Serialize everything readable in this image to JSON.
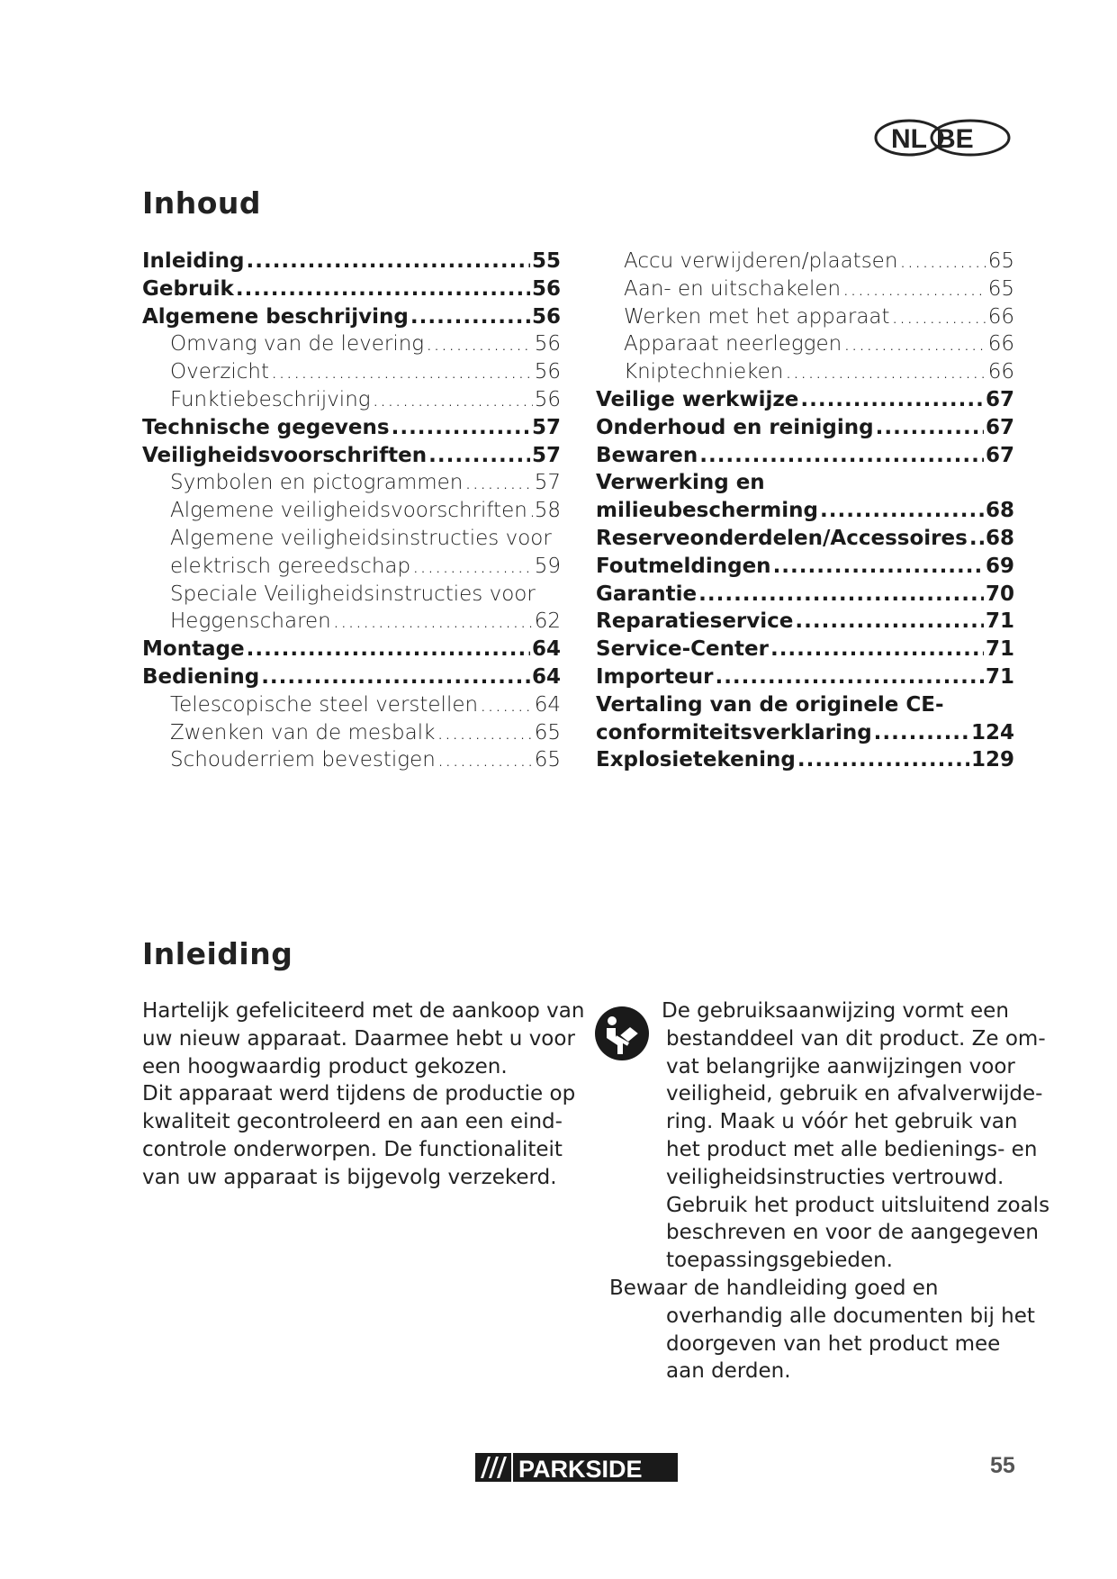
{
  "header": {
    "languages": [
      "NL",
      "BE"
    ]
  },
  "toc": {
    "title": "Inhoud",
    "left": [
      {
        "text": "Inleiding",
        "page": "55",
        "style": "b"
      },
      {
        "text": "Gebruik",
        "page": "56",
        "style": "b"
      },
      {
        "text": "Algemene beschrijving",
        "page": "56",
        "style": "b"
      },
      {
        "text": "Omvang van de levering",
        "page": "56",
        "style": "i"
      },
      {
        "text": "Overzicht",
        "page": "56",
        "style": "i"
      },
      {
        "text": "Funktiebeschrijving",
        "page": "56",
        "style": "i"
      },
      {
        "text": "Technische gegevens",
        "page": "57",
        "style": "b"
      },
      {
        "text": "Veiligheidsvoorschriften",
        "page": "57",
        "style": "b"
      },
      {
        "text": "Symbolen en pictogrammen",
        "page": "57",
        "style": "i"
      },
      {
        "text": "Algemene veiligheidsvoorschriften",
        "page": "58",
        "style": "i"
      },
      {
        "text": "Algemene veiligheidsinstructies voor",
        "page": null,
        "style": "i"
      },
      {
        "text": "elektrisch gereedschap",
        "page": "59",
        "style": "i"
      },
      {
        "text": "Speciale Veiligheidsinstructies voor",
        "page": null,
        "style": "i"
      },
      {
        "text": "Heggenscharen",
        "page": "62",
        "style": "i"
      },
      {
        "text": "Montage",
        "page": "64",
        "style": "b"
      },
      {
        "text": "Bediening",
        "page": "64",
        "style": "b"
      },
      {
        "text": "Telescopische steel verstellen",
        "page": "64",
        "style": "i"
      },
      {
        "text": "Zwenken van de mesbalk",
        "page": "65",
        "style": "i"
      },
      {
        "text": "Schouderriem bevestigen",
        "page": "65",
        "style": "i"
      }
    ],
    "right": [
      {
        "text": "Accu verwijderen/plaatsen",
        "page": "65",
        "style": "i"
      },
      {
        "text": "Aan- en uitschakelen",
        "page": "65",
        "style": "i"
      },
      {
        "text": "Werken met het apparaat",
        "page": "66",
        "style": "i"
      },
      {
        "text": "Apparaat neerleggen",
        "page": "66",
        "style": "i"
      },
      {
        "text": "Kniptechnieken",
        "page": "66",
        "style": "i"
      },
      {
        "text": "Veilige werkwijze",
        "page": "67",
        "style": "b"
      },
      {
        "text": "Onderhoud en reiniging",
        "page": "67",
        "style": "b"
      },
      {
        "text": "Bewaren",
        "page": "67",
        "style": "b"
      },
      {
        "text": "Verwerking en",
        "page": null,
        "style": "b"
      },
      {
        "text": "milieubescherming",
        "page": "68",
        "style": "b"
      },
      {
        "text": "Reserveonderdelen/Accessoires",
        "page": "68",
        "style": "b"
      },
      {
        "text": "Foutmeldingen",
        "page": "69",
        "style": "b"
      },
      {
        "text": "Garantie",
        "page": "70",
        "style": "b"
      },
      {
        "text": "Reparatieservice",
        "page": "71",
        "style": "b"
      },
      {
        "text": "Service-Center",
        "page": "71",
        "style": "b"
      },
      {
        "text": "Importeur",
        "page": "71",
        "style": "b"
      },
      {
        "text": "Vertaling van de originele CE-",
        "page": null,
        "style": "b"
      },
      {
        "text": "conformiteitsverklaring",
        "page": "124",
        "style": "b"
      },
      {
        "text": "Explosietekening",
        "page": "129",
        "style": "b"
      }
    ]
  },
  "intro": {
    "title": "Inleiding",
    "left_lines": [
      "Hartelijk gefeliciteerd met de aankoop van",
      "uw nieuw apparaat. Daarmee hebt u voor",
      "een hoogwaardig product gekozen.",
      "Dit apparaat werd tijdens de productie op",
      "kwaliteit gecontroleerd en aan een eind-",
      "controle onderworpen. De functionaliteit",
      "van uw apparaat is bijgevolg verzekerd."
    ],
    "icon": "read-manual-icon",
    "right_lines": [
      "De gebruiksaanwijzing vormt een",
      "bestanddeel van dit product. Ze om-",
      "vat belangrijke aanwijzingen voor",
      "veiligheid, gebruik en afvalverwijde-",
      "ring. Maak u vóór het gebruik van",
      "het product met alle bedienings- en",
      "veiligheidsinstructies vertrouwd.",
      "Gebruik het product uitsluitend zoals",
      "beschreven en voor de aangegeven",
      "toepassingsgebieden."
    ],
    "right_lines2": [
      "Bewaar de handleiding goed en",
      "overhandig alle documenten bij het",
      "doorgeven van het product mee",
      "aan derden."
    ]
  },
  "footer": {
    "brand": "PARKSIDE",
    "page_number": "55"
  }
}
